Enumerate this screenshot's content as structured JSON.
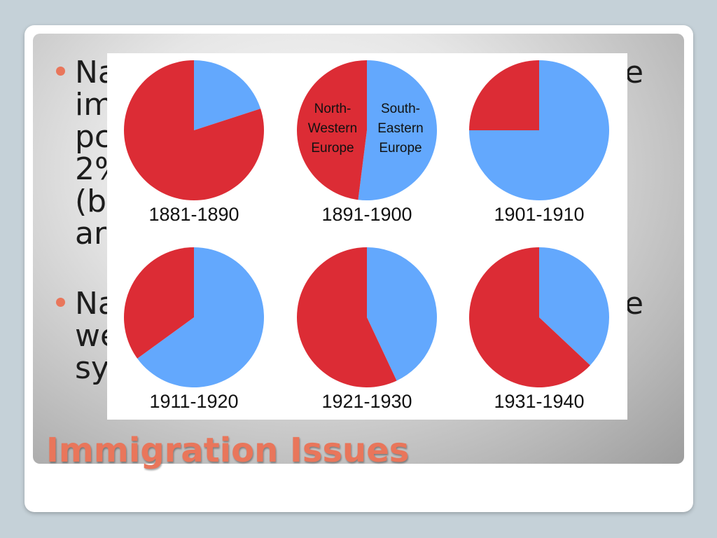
{
  "slide": {
    "title": "Immigration Issues",
    "bullets": [
      {
        "lines": [
          {
            "left": "Na",
            "right": "e"
          },
          {
            "left": "im",
            "right": ""
          },
          {
            "left": "pc",
            "right": ""
          },
          {
            "left": "2%",
            "right": ""
          },
          {
            "left": "(b",
            "right": ""
          },
          {
            "left": "ar",
            "right": ""
          }
        ]
      },
      {
        "lines": [
          {
            "left": "Na",
            "right": "e"
          },
          {
            "left": "we",
            "right": ""
          },
          {
            "left": "sy",
            "right": ""
          }
        ]
      }
    ]
  },
  "colors": {
    "north_western": "#dc2c35",
    "south_eastern": "#63a8fd",
    "accent": "#e9765b"
  },
  "chart_data": {
    "type": "pie",
    "series_names": [
      "North-Western Europe",
      "South-Eastern Europe"
    ],
    "region_labels": {
      "north_western": [
        "North-",
        "Western",
        "Europe"
      ],
      "south_eastern": [
        "South-",
        "Eastern",
        "Europe"
      ]
    },
    "charts": [
      {
        "period": "1881-1890",
        "north_western": 80,
        "south_eastern": 20
      },
      {
        "period": "1891-1900",
        "north_western": 48,
        "south_eastern": 52
      },
      {
        "period": "1901-1910",
        "north_western": 25,
        "south_eastern": 75
      },
      {
        "period": "1911-1920",
        "north_western": 35,
        "south_eastern": 65
      },
      {
        "period": "1921-1930",
        "north_western": 57,
        "south_eastern": 43
      },
      {
        "period": "1931-1940",
        "north_western": 63,
        "south_eastern": 37
      }
    ]
  }
}
